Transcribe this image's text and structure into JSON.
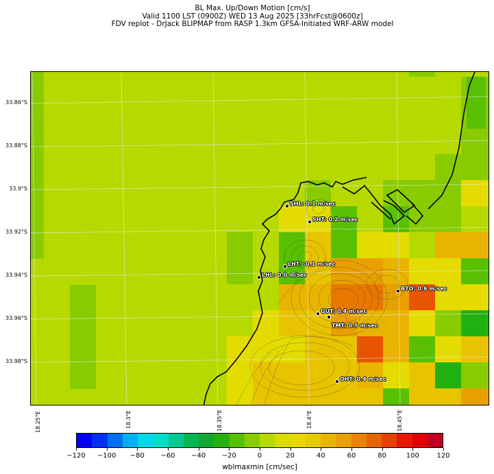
{
  "title": {
    "line1": "BL Max. Up/Down Motion [cm/s]",
    "line2": "Valid 1100 LST (0900Z) WED 13 Aug 2025 [33hrFcst@0600z]",
    "line3": "FDV replot - DrJack BLIPMAP from RASP 1.3km GFSA-Initiated WRF-ARW model"
  },
  "y_axis": {
    "ticks": [
      "33.86°S",
      "33.88°S",
      "33.9°S",
      "33.92°S",
      "33.94°S",
      "33.96°S",
      "33.98°S"
    ]
  },
  "x_axis": {
    "ticks": [
      "18.25°E",
      "18.3°E",
      "18.35°E",
      "18.4°E",
      "18.45°E"
    ]
  },
  "stations": [
    {
      "code": "SHL",
      "label": "SHL: 0.1 m/sec",
      "value": 0.1
    },
    {
      "code": "SHT",
      "label": "SHT: 0.2 m/sec",
      "value": 0.2
    },
    {
      "code": "LHT",
      "label": "LHT: -0.1 m/sec",
      "value": -0.1
    },
    {
      "code": "LHL",
      "label": "LHL: 0.0 m/sec",
      "value": 0.0
    },
    {
      "code": "BTO",
      "label": "BTO: 0.6 m/sec",
      "value": 0.6
    },
    {
      "code": "GUT",
      "label": "GUT: 0.4 m/sec",
      "value": 0.4
    },
    {
      "code": "TMT",
      "label": "TMT: 0.5 m/sec",
      "value": 0.5
    },
    {
      "code": "OHT",
      "label": "OHT: 0.4 m/sec",
      "value": 0.4
    }
  ],
  "colorbar": {
    "label": "wblmaxmin [cm/sec]",
    "ticks": [
      "−120",
      "−100",
      "−80",
      "−60",
      "−40",
      "−20",
      "0",
      "20",
      "40",
      "60",
      "80",
      "100",
      "120"
    ],
    "colors": [
      "#0000f0",
      "#0030f0",
      "#0070f0",
      "#00b0f0",
      "#00d8e8",
      "#00dcc8",
      "#00c890",
      "#00b850",
      "#10a830",
      "#28b010",
      "#58c000",
      "#88cc00",
      "#b6da00",
      "#d8dc00",
      "#e8d800",
      "#e8c800",
      "#e8b400",
      "#e8a000",
      "#e88400",
      "#e86400",
      "#e84000",
      "#e81800",
      "#e00000",
      "#c00020"
    ]
  },
  "legend_colors": {
    "background": "#b6da00",
    "light_green": "#88cc00",
    "green": "#58c000",
    "dark_green": "#20b010",
    "yellow": "#e4dc00",
    "yellow_orange": "#e8c400",
    "orange": "#e8a000",
    "dark_orange": "#e87800",
    "red_orange": "#e85400"
  }
}
